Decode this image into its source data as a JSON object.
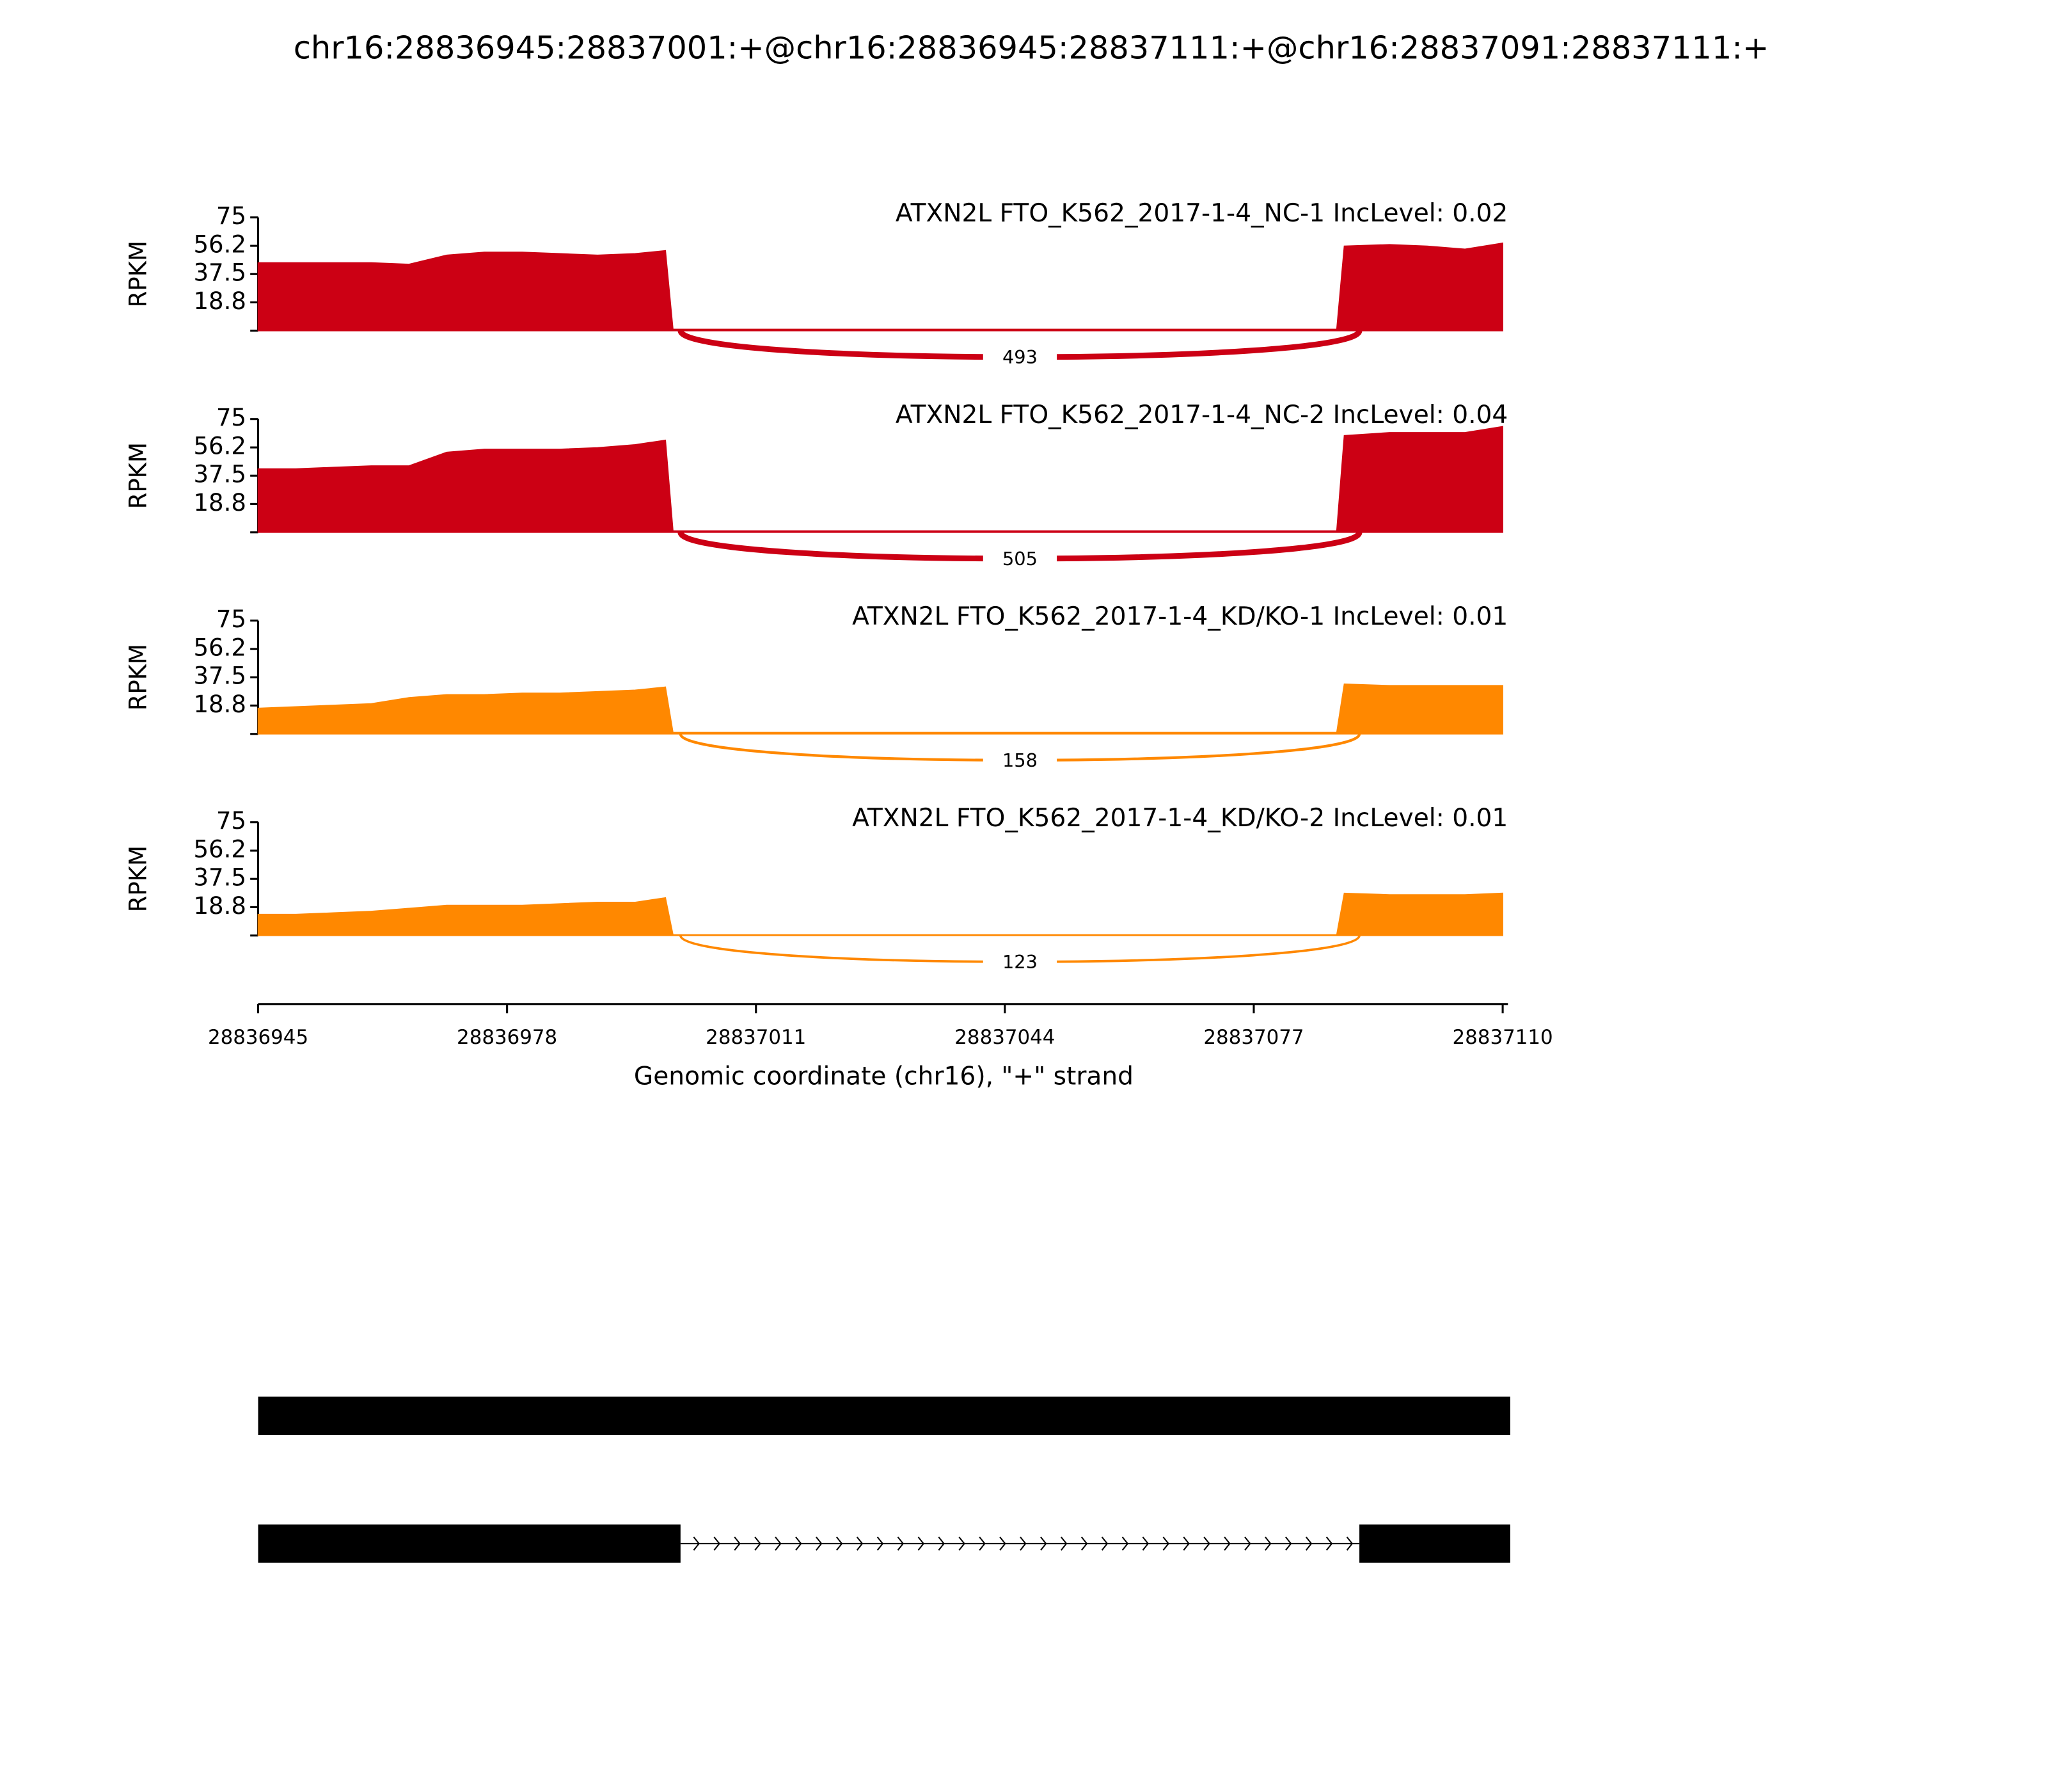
{
  "title": "chr16:28836945:28837001:+@chr16:28836945:28837111:+@chr16:28837091:28837111:+",
  "chart_data": [
    {
      "type": "area",
      "title": "ATXN2L FTO_K562_2017-1-4_NC-1 IncLevel: 0.02",
      "ylabel": "RPKM",
      "color": "#cc0014",
      "x": [
        28836945,
        28836950,
        28836955,
        28836960,
        28836965,
        28836970,
        28836975,
        28836980,
        28836985,
        28836990,
        28836995,
        28836999,
        28837000,
        28837088,
        28837089,
        28837095,
        28837100,
        28837105,
        28837110
      ],
      "values": [
        45,
        45,
        45,
        45,
        44,
        50,
        52,
        52,
        51,
        50,
        51,
        53,
        1,
        1,
        56,
        57,
        56,
        54,
        58
      ],
      "xlim": [
        28836945,
        28837110
      ],
      "ylim": [
        0,
        75
      ],
      "yticks": [
        18.8,
        37.5,
        56.2,
        75
      ],
      "junctions": [
        {
          "start": 28837001,
          "end": 28837091,
          "count": 493
        }
      ]
    },
    {
      "type": "area",
      "title": "ATXN2L FTO_K562_2017-1-4_NC-2 IncLevel: 0.04",
      "ylabel": "RPKM",
      "color": "#cc0014",
      "x": [
        28836945,
        28836950,
        28836955,
        28836960,
        28836965,
        28836970,
        28836975,
        28836980,
        28836985,
        28836990,
        28836995,
        28836999,
        28837000,
        28837088,
        28837089,
        28837095,
        28837100,
        28837105,
        28837110
      ],
      "values": [
        42,
        42,
        43,
        44,
        44,
        53,
        55,
        55,
        55,
        56,
        58,
        61,
        1,
        1,
        64,
        66,
        66,
        66,
        70
      ],
      "xlim": [
        28836945,
        28837110
      ],
      "ylim": [
        0,
        75
      ],
      "yticks": [
        18.8,
        37.5,
        56.2,
        75
      ],
      "junctions": [
        {
          "start": 28837001,
          "end": 28837091,
          "count": 505
        }
      ]
    },
    {
      "type": "area",
      "title": "ATXN2L FTO_K562_2017-1-4_KD/KO-1 IncLevel: 0.01",
      "ylabel": "RPKM",
      "color": "#ff8800",
      "x": [
        28836945,
        28836950,
        28836955,
        28836960,
        28836965,
        28836970,
        28836975,
        28836980,
        28836985,
        28836990,
        28836995,
        28836999,
        28837000,
        28837088,
        28837089,
        28837095,
        28837100,
        28837105,
        28837110
      ],
      "values": [
        17,
        18,
        19,
        20,
        24,
        26,
        26,
        27,
        27,
        28,
        29,
        31,
        1,
        1,
        33,
        32,
        32,
        32,
        32
      ],
      "xlim": [
        28836945,
        28837110
      ],
      "ylim": [
        0,
        75
      ],
      "yticks": [
        18.8,
        37.5,
        56.2,
        75
      ],
      "junctions": [
        {
          "start": 28837001,
          "end": 28837091,
          "count": 158
        }
      ]
    },
    {
      "type": "area",
      "title": "ATXN2L FTO_K562_2017-1-4_KD/KO-2 IncLevel: 0.01",
      "ylabel": "RPKM",
      "color": "#ff8800",
      "x": [
        28836945,
        28836950,
        28836955,
        28836960,
        28836965,
        28836970,
        28836975,
        28836980,
        28836985,
        28836990,
        28836995,
        28836999,
        28837000,
        28837088,
        28837089,
        28837095,
        28837100,
        28837105,
        28837110
      ],
      "values": [
        14,
        14,
        15,
        16,
        18,
        20,
        20,
        20,
        21,
        22,
        22,
        25,
        0.5,
        0.5,
        28,
        27,
        27,
        27,
        28
      ],
      "xlim": [
        28836945,
        28837110
      ],
      "ylim": [
        0,
        75
      ],
      "yticks": [
        18.8,
        37.5,
        56.2,
        75
      ],
      "junctions": [
        {
          "start": 28837001,
          "end": 28837091,
          "count": 123
        }
      ],
      "xlabel": "Genomic coordinate (chr16), \"+\" strand",
      "xticks": [
        28836945,
        28836978,
        28837011,
        28837044,
        28837077,
        28837110
      ]
    }
  ],
  "gene_model": {
    "transcripts": [
      {
        "exons": [
          [
            28836945,
            28837111
          ]
        ]
      },
      {
        "exons": [
          [
            28836945,
            28837001
          ],
          [
            28837091,
            28837111
          ]
        ]
      }
    ]
  }
}
